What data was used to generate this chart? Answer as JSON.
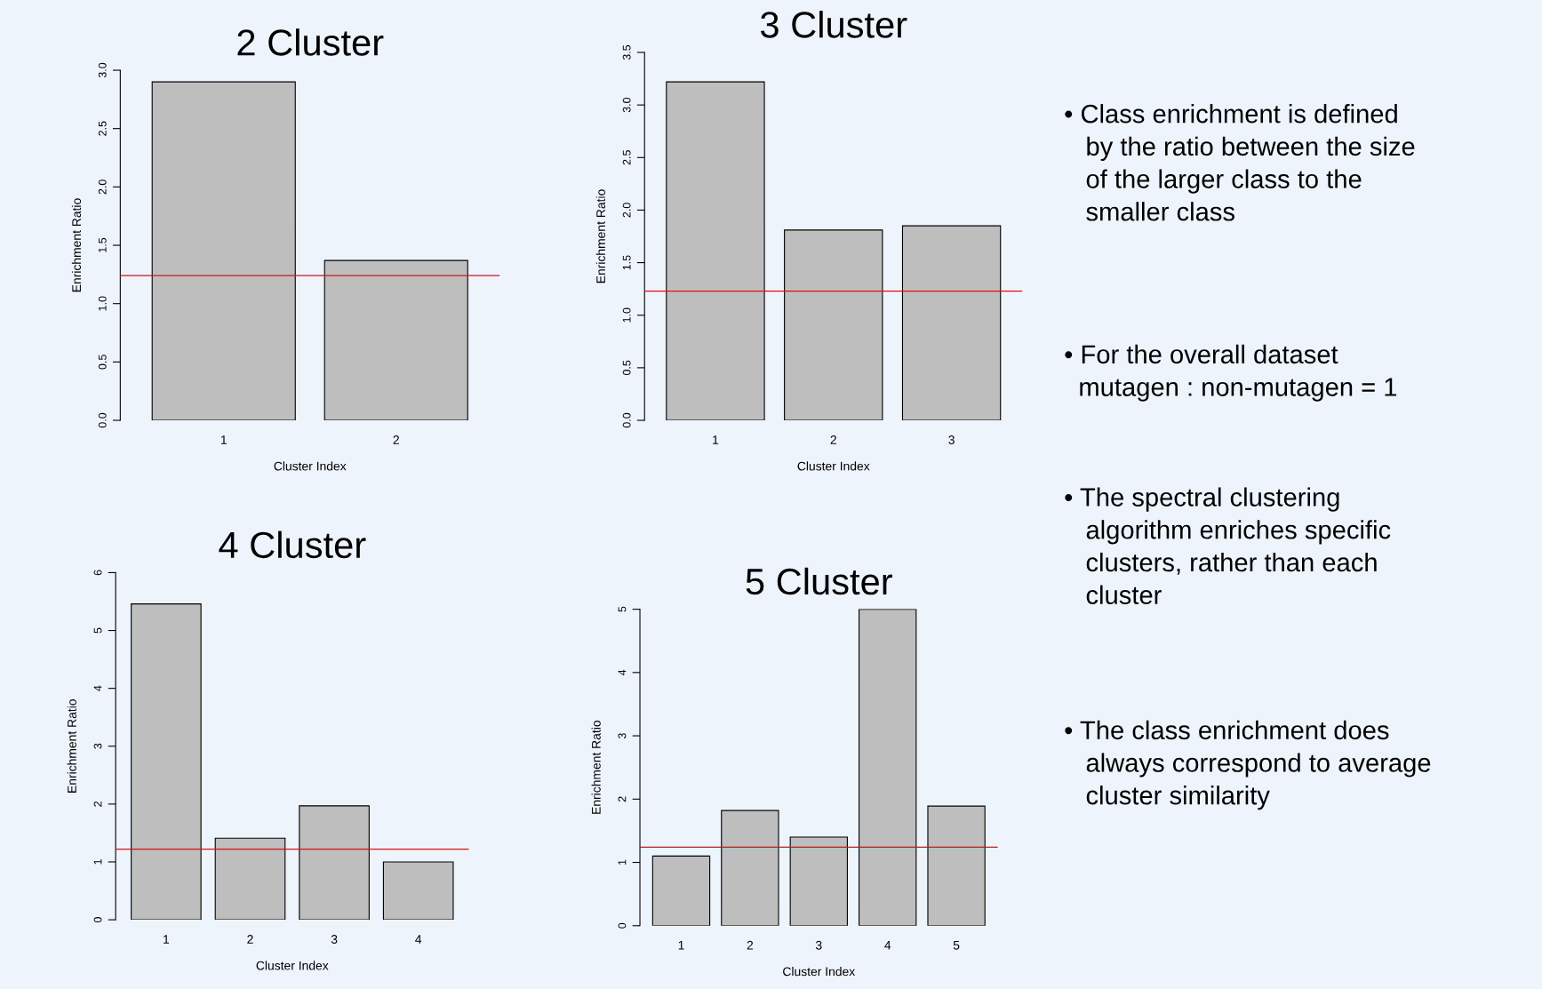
{
  "chart_data": [
    {
      "type": "bar",
      "title": "2 Cluster",
      "xlabel": "Cluster Index",
      "ylabel": "Enrichment Ratio",
      "categories": [
        "1",
        "2"
      ],
      "values": [
        2.9,
        1.37
      ],
      "color": "#bebebe",
      "ylim": [
        0,
        3
      ],
      "yticks": [
        {
          "value": 0,
          "label": "0.0"
        },
        {
          "value": 0.5,
          "label": "0.5"
        },
        {
          "value": 1,
          "label": "1.0"
        },
        {
          "value": 1.5,
          "label": "1.5"
        },
        {
          "value": 2,
          "label": "2.0"
        },
        {
          "value": 2.5,
          "label": "2.5"
        },
        {
          "value": 3,
          "label": "3.0"
        }
      ],
      "ref_lines": [
        {
          "axis": "y",
          "value": 1.24,
          "color": "#ff0000"
        }
      ]
    },
    {
      "type": "bar",
      "title": "3 Cluster",
      "xlabel": "Cluster Index",
      "ylabel": "Enrichment Ratio",
      "categories": [
        "1",
        "2",
        "3"
      ],
      "values": [
        3.22,
        1.81,
        1.85
      ],
      "color": "#bebebe",
      "ylim": [
        0,
        3.5
      ],
      "yticks": [
        {
          "value": 0,
          "label": "0.0"
        },
        {
          "value": 0.5,
          "label": "0.5"
        },
        {
          "value": 1,
          "label": "1.0"
        },
        {
          "value": 1.5,
          "label": "1.5"
        },
        {
          "value": 2,
          "label": "2.0"
        },
        {
          "value": 2.5,
          "label": "2.5"
        },
        {
          "value": 3,
          "label": "3.0"
        },
        {
          "value": 3.5,
          "label": "3.5"
        }
      ],
      "ref_lines": [
        {
          "axis": "y",
          "value": 1.23,
          "color": "#ff0000"
        }
      ]
    },
    {
      "type": "bar",
      "title": "4 Cluster",
      "xlabel": "Cluster Index",
      "ylabel": "Enrichment Ratio",
      "categories": [
        "1",
        "2",
        "3",
        "4"
      ],
      "values": [
        5.46,
        1.41,
        1.97,
        1.0
      ],
      "color": "#bebebe",
      "ylim": [
        0,
        6
      ],
      "yticks": [
        0,
        1,
        2,
        3,
        4,
        5,
        6
      ],
      "ref_lines": [
        {
          "axis": "y",
          "value": 1.22,
          "color": "#ff0000"
        }
      ]
    },
    {
      "type": "bar",
      "title": "5 Cluster",
      "xlabel": "Cluster Index",
      "ylabel": "Enrichment Ratio",
      "categories": [
        "1",
        "2",
        "3",
        "4",
        "5"
      ],
      "values": [
        1.1,
        1.82,
        1.4,
        5.0,
        1.89
      ],
      "color": "#bebebe",
      "ylim": [
        0,
        5
      ],
      "yticks": [
        0,
        1,
        2,
        3,
        4,
        5
      ],
      "ref_lines": [
        {
          "axis": "y",
          "value": 1.24,
          "color": "#ff0000"
        }
      ]
    },
    {
      "type": "other",
      "annotations": [
        "• Class enrichment is defined\n   by the ratio between the size\n   of the larger class to the\n   smaller class",
        "• For the overall dataset\n  mutagen : non-mutagen = 1",
        "• The spectral clustering\n   algorithm enriches specific\n   clusters, rather than each\n   cluster",
        "• The class enrichment does\n   always correspond to average\n   cluster similarity"
      ]
    }
  ]
}
